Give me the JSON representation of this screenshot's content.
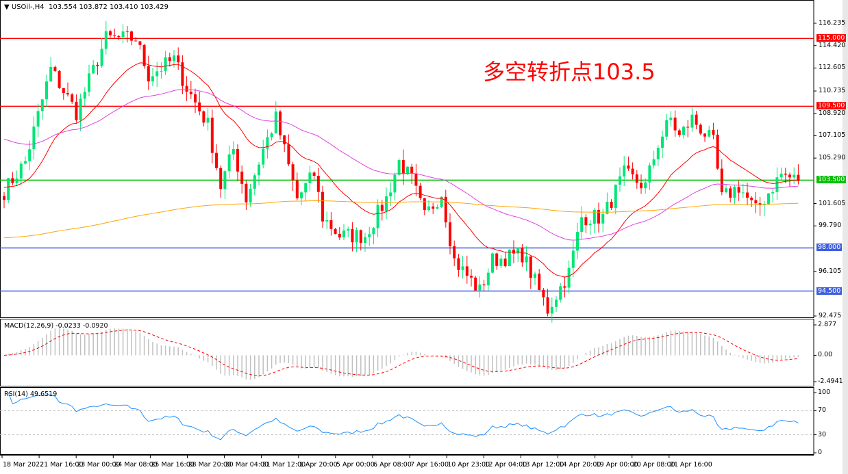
{
  "header": {
    "symbol": "USOil-,H4",
    "open": "103.554",
    "high": "103.872",
    "low": "103.410",
    "close": "103.429"
  },
  "annotation": "多空转折点103.5",
  "chart_data": {
    "type": "candlestick",
    "price_axis": {
      "ticks": [
        "116.235",
        "114.420",
        "112.605",
        "110.735",
        "108.920",
        "107.105",
        "105.290",
        "101.605",
        "99.790",
        "96.105",
        "92.475"
      ],
      "range": [
        92.475,
        116.235
      ]
    },
    "time_axis": {
      "ticks": [
        "18 Mar 2022",
        "21 Mar 16:00",
        "23 Mar 00:00",
        "24 Mar 08:00",
        "25 Mar 16:00",
        "28 Mar 20:00",
        "30 Mar 04:00",
        "31 Mar 12:00",
        "1 Apr 20:00",
        "5 Apr 00:00",
        "6 Apr 08:00",
        "7 Apr 16:00",
        "10 Apr 23:00",
        "12 Apr 04:00",
        "13 Apr 12:00",
        "14 Apr 20:00",
        "19 Apr 00:00",
        "20 Apr 08:00",
        "21 Apr 16:00"
      ]
    },
    "bar_count": 188,
    "close_path": [
      [
        0,
        102.6
      ],
      [
        5,
        105
      ],
      [
        11,
        112.5
      ],
      [
        17,
        109
      ],
      [
        24,
        115
      ],
      [
        31,
        115
      ],
      [
        34,
        112
      ],
      [
        40,
        113.3
      ],
      [
        43,
        111
      ],
      [
        48,
        108
      ],
      [
        51,
        103
      ],
      [
        54,
        106
      ],
      [
        57,
        102
      ],
      [
        61,
        106
      ],
      [
        64,
        108.5
      ],
      [
        69,
        102
      ],
      [
        73,
        104
      ],
      [
        75,
        100.5
      ],
      [
        79,
        99
      ],
      [
        85,
        99
      ],
      [
        90,
        102
      ],
      [
        93,
        105
      ],
      [
        96,
        103.5
      ],
      [
        99,
        100.5
      ],
      [
        103,
        102.5
      ],
      [
        106,
        97
      ],
      [
        112,
        94.5
      ],
      [
        115,
        97
      ],
      [
        122,
        97.5
      ],
      [
        128,
        93
      ],
      [
        133,
        96
      ],
      [
        136,
        100.5
      ],
      [
        141,
        100.5
      ],
      [
        146,
        104
      ],
      [
        151,
        103
      ],
      [
        154,
        106.5
      ],
      [
        157,
        108.5
      ],
      [
        159,
        107
      ],
      [
        162,
        108.5
      ],
      [
        167,
        106.5
      ],
      [
        169,
        102
      ],
      [
        173,
        103
      ],
      [
        177,
        101
      ],
      [
        180,
        102.5
      ],
      [
        183,
        104
      ],
      [
        187,
        103.43
      ]
    ],
    "levels": [
      {
        "price": 115.0,
        "label": "115.000",
        "color": "#ff0000"
      },
      {
        "price": 109.5,
        "label": "109.500",
        "color": "#ff0000"
      },
      {
        "price": 103.5,
        "label": "103.500",
        "color": "#00c000"
      },
      {
        "price": 98.0,
        "label": "98.000",
        "color": "#3f5fe0"
      },
      {
        "price": 94.5,
        "label": "94.500",
        "color": "#3f5fe0"
      }
    ],
    "moving_averages": [
      {
        "color": "#ff0000"
      },
      {
        "color": "#e040e0"
      },
      {
        "color": "#ffa500"
      }
    ],
    "colors": {
      "bull": "#00e676",
      "bear": "#ff0000"
    },
    "macd": {
      "label": "MACD(12,26,9) -0.0233 -0.0920",
      "ticks": [
        "2.877",
        "0.00",
        "-2.4941"
      ],
      "range": [
        -2.4941,
        2.877
      ]
    },
    "rsi": {
      "label": "RSI(14) 49.6519",
      "ticks": [
        "100",
        "70",
        "30",
        "0"
      ],
      "levels": [
        70,
        30
      ]
    }
  }
}
